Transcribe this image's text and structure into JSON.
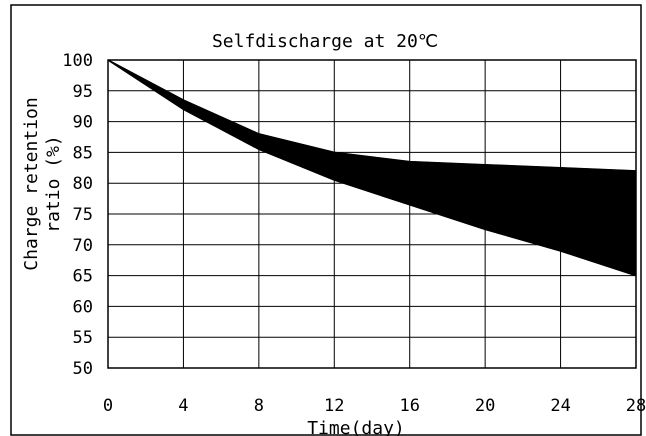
{
  "chart_data": {
    "type": "area",
    "title": "Selfdischarge at 20℃",
    "xlabel": "Time(day)",
    "ylabel_line1": "Charge retention",
    "ylabel_line2": "ratio (%)",
    "xlim": [
      0,
      28
    ],
    "ylim": [
      50,
      100
    ],
    "xticks": [
      "0",
      "4",
      "8",
      "12",
      "16",
      "20",
      "24",
      "28"
    ],
    "yticks": [
      "100",
      "95",
      "90",
      "85",
      "80",
      "75",
      "70",
      "65",
      "60",
      "55",
      "50"
    ],
    "grid": true,
    "fill_color": "#000000",
    "series": [
      {
        "x": [
          0,
          4,
          8,
          12,
          16,
          20,
          24,
          28
        ],
        "values": [
          100,
          93.5,
          88,
          85,
          83.5,
          83,
          82.5,
          82
        ]
      },
      {
        "x": [
          0,
          4,
          8,
          12,
          16,
          20,
          24,
          28
        ],
        "values": [
          100,
          92,
          85.5,
          80.5,
          76.5,
          72.5,
          69,
          65
        ]
      }
    ]
  }
}
